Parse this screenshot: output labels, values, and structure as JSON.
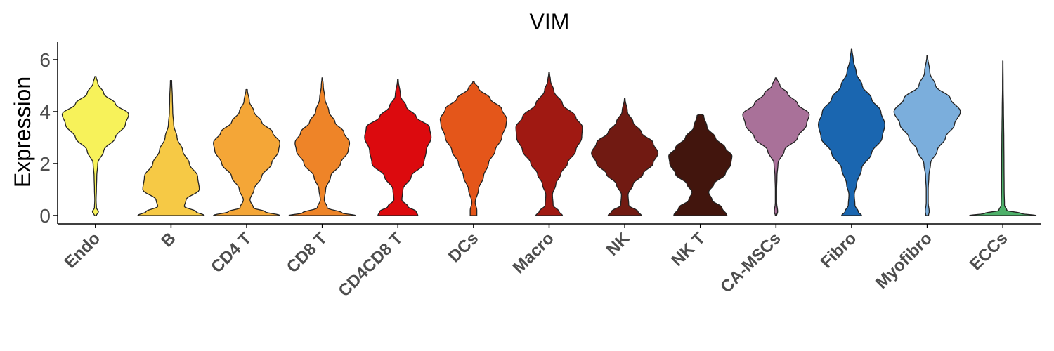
{
  "chart_data": {
    "type": "violin",
    "title": "VIM",
    "xlabel": "",
    "ylabel": "Expression",
    "ylim": [
      -0.3,
      6.7
    ],
    "yticks": [
      "0",
      "2",
      "4",
      "6"
    ],
    "grid": false,
    "legend": "none",
    "categories": [
      "Endo",
      "B",
      "CD4 T",
      "CD8 T",
      "CD4CD8 T",
      "DCs",
      "Macro",
      "NK",
      "NK T",
      "CA-MSCs",
      "Fibro",
      "Myofibro",
      "ECCs"
    ],
    "colors": [
      "#F7F25A",
      "#F6C945",
      "#F4A637",
      "#EE8428",
      "#DC0A0E",
      "#E4561A",
      "#A01912",
      "#711A12",
      "#42150D",
      "#A97199",
      "#1A66B0",
      "#7BAEDC",
      "#4EB16A"
    ],
    "series": [
      {
        "category": "Endo",
        "max": 5.35,
        "profile": [
          [
            0,
            0.03
          ],
          [
            0.15,
            0.09
          ],
          [
            0.3,
            0.03
          ],
          [
            0.6,
            0.02
          ],
          [
            1.0,
            0.03
          ],
          [
            1.5,
            0.04
          ],
          [
            2.0,
            0.07
          ],
          [
            2.5,
            0.25
          ],
          [
            3.0,
            0.6
          ],
          [
            3.5,
            0.9
          ],
          [
            3.9,
            1.0
          ],
          [
            4.3,
            0.6
          ],
          [
            4.7,
            0.25
          ],
          [
            5.1,
            0.07
          ],
          [
            5.35,
            0.02
          ]
        ]
      },
      {
        "category": "B",
        "max": 5.2,
        "profile": [
          [
            0,
            1.0
          ],
          [
            0.15,
            0.75
          ],
          [
            0.35,
            0.4
          ],
          [
            0.6,
            0.45
          ],
          [
            1.0,
            0.85
          ],
          [
            1.5,
            0.8
          ],
          [
            2.0,
            0.55
          ],
          [
            2.5,
            0.35
          ],
          [
            3.0,
            0.18
          ],
          [
            3.5,
            0.08
          ],
          [
            4.0,
            0.05
          ],
          [
            4.5,
            0.04
          ],
          [
            5.2,
            0.02
          ]
        ]
      },
      {
        "category": "CD4 T",
        "max": 4.85,
        "profile": [
          [
            0,
            1.0
          ],
          [
            0.15,
            0.55
          ],
          [
            0.3,
            0.2
          ],
          [
            0.6,
            0.1
          ],
          [
            1.0,
            0.22
          ],
          [
            1.5,
            0.45
          ],
          [
            2.0,
            0.75
          ],
          [
            2.5,
            0.96
          ],
          [
            2.8,
            1.0
          ],
          [
            3.2,
            0.78
          ],
          [
            3.6,
            0.45
          ],
          [
            4.0,
            0.22
          ],
          [
            4.4,
            0.08
          ],
          [
            4.85,
            0.02
          ]
        ]
      },
      {
        "category": "CD8 T",
        "max": 5.3,
        "profile": [
          [
            0,
            1.0
          ],
          [
            0.1,
            0.6
          ],
          [
            0.3,
            0.15
          ],
          [
            0.6,
            0.06
          ],
          [
            1.0,
            0.1
          ],
          [
            1.5,
            0.25
          ],
          [
            2.0,
            0.55
          ],
          [
            2.5,
            0.78
          ],
          [
            2.8,
            0.82
          ],
          [
            3.2,
            0.65
          ],
          [
            3.6,
            0.38
          ],
          [
            4.0,
            0.2
          ],
          [
            4.5,
            0.08
          ],
          [
            5.0,
            0.03
          ],
          [
            5.3,
            0.01
          ]
        ]
      },
      {
        "category": "CD4CD8 T",
        "max": 5.25,
        "profile": [
          [
            0,
            0.6
          ],
          [
            0.15,
            0.55
          ],
          [
            0.35,
            0.3
          ],
          [
            0.6,
            0.12
          ],
          [
            1.0,
            0.15
          ],
          [
            1.5,
            0.4
          ],
          [
            2.0,
            0.78
          ],
          [
            2.5,
            0.85
          ],
          [
            3.0,
            1.0
          ],
          [
            3.4,
            0.95
          ],
          [
            3.8,
            0.55
          ],
          [
            4.2,
            0.25
          ],
          [
            4.6,
            0.08
          ],
          [
            5.25,
            0.01
          ]
        ]
      },
      {
        "category": "DCs",
        "max": 5.15,
        "profile": [
          [
            0,
            0.1
          ],
          [
            0.2,
            0.1
          ],
          [
            0.5,
            0.05
          ],
          [
            1.0,
            0.15
          ],
          [
            1.5,
            0.3
          ],
          [
            2.0,
            0.45
          ],
          [
            2.5,
            0.65
          ],
          [
            3.0,
            0.85
          ],
          [
            3.5,
            0.98
          ],
          [
            3.7,
            1.0
          ],
          [
            4.1,
            0.85
          ],
          [
            4.5,
            0.5
          ],
          [
            4.9,
            0.15
          ],
          [
            5.15,
            0.02
          ]
        ]
      },
      {
        "category": "Macro",
        "max": 5.5,
        "profile": [
          [
            0,
            0.4
          ],
          [
            0.15,
            0.3
          ],
          [
            0.4,
            0.12
          ],
          [
            0.8,
            0.1
          ],
          [
            1.2,
            0.2
          ],
          [
            1.6,
            0.35
          ],
          [
            2.0,
            0.55
          ],
          [
            2.5,
            0.8
          ],
          [
            3.0,
            0.98
          ],
          [
            3.4,
            1.0
          ],
          [
            3.8,
            0.8
          ],
          [
            4.3,
            0.4
          ],
          [
            4.8,
            0.14
          ],
          [
            5.2,
            0.04
          ],
          [
            5.5,
            0.01
          ]
        ]
      },
      {
        "category": "NK",
        "max": 4.5,
        "profile": [
          [
            0,
            0.5
          ],
          [
            0.15,
            0.4
          ],
          [
            0.4,
            0.12
          ],
          [
            0.8,
            0.1
          ],
          [
            1.2,
            0.25
          ],
          [
            1.6,
            0.55
          ],
          [
            2.0,
            0.85
          ],
          [
            2.4,
            1.0
          ],
          [
            2.8,
            0.85
          ],
          [
            3.2,
            0.5
          ],
          [
            3.6,
            0.25
          ],
          [
            4.0,
            0.08
          ],
          [
            4.5,
            0.01
          ]
        ]
      },
      {
        "category": "NK T",
        "max": 3.9,
        "profile": [
          [
            0,
            0.8
          ],
          [
            0.3,
            0.65
          ],
          [
            0.6,
            0.35
          ],
          [
            0.9,
            0.25
          ],
          [
            1.2,
            0.4
          ],
          [
            1.6,
            0.75
          ],
          [
            2.0,
            0.92
          ],
          [
            2.3,
            0.95
          ],
          [
            2.6,
            0.75
          ],
          [
            3.0,
            0.45
          ],
          [
            3.4,
            0.2
          ],
          [
            3.85,
            0.1
          ],
          [
            3.9,
            0.02
          ]
        ]
      },
      {
        "category": "CA-MSCs",
        "max": 5.3,
        "profile": [
          [
            0,
            0.02
          ],
          [
            0.15,
            0.05
          ],
          [
            0.5,
            0.02
          ],
          [
            1.0,
            0.02
          ],
          [
            1.5,
            0.03
          ],
          [
            2.0,
            0.06
          ],
          [
            2.5,
            0.25
          ],
          [
            3.0,
            0.65
          ],
          [
            3.5,
            0.92
          ],
          [
            3.9,
            1.0
          ],
          [
            4.3,
            0.65
          ],
          [
            4.7,
            0.35
          ],
          [
            5.0,
            0.12
          ],
          [
            5.3,
            0.02
          ]
        ]
      },
      {
        "category": "Fibro",
        "max": 6.4,
        "profile": [
          [
            0,
            0.3
          ],
          [
            0.15,
            0.2
          ],
          [
            0.4,
            0.1
          ],
          [
            0.8,
            0.08
          ],
          [
            1.2,
            0.15
          ],
          [
            1.8,
            0.3
          ],
          [
            2.4,
            0.6
          ],
          [
            3.0,
            0.92
          ],
          [
            3.5,
            1.0
          ],
          [
            4.0,
            0.88
          ],
          [
            4.5,
            0.6
          ],
          [
            5.0,
            0.32
          ],
          [
            5.5,
            0.14
          ],
          [
            6.0,
            0.05
          ],
          [
            6.4,
            0.01
          ]
        ]
      },
      {
        "category": "Myofibro",
        "max": 6.15,
        "profile": [
          [
            0,
            0.04
          ],
          [
            0.15,
            0.06
          ],
          [
            0.5,
            0.03
          ],
          [
            1.0,
            0.03
          ],
          [
            1.5,
            0.05
          ],
          [
            2.0,
            0.1
          ],
          [
            2.5,
            0.3
          ],
          [
            3.0,
            0.55
          ],
          [
            3.5,
            0.82
          ],
          [
            4.0,
            1.0
          ],
          [
            4.5,
            0.7
          ],
          [
            5.0,
            0.25
          ],
          [
            5.5,
            0.08
          ],
          [
            6.15,
            0.01
          ]
        ]
      },
      {
        "category": "ECCs",
        "max": 5.95,
        "profile": [
          [
            0,
            1.0
          ],
          [
            0.08,
            0.55
          ],
          [
            0.2,
            0.12
          ],
          [
            0.4,
            0.05
          ],
          [
            1.0,
            0.04
          ],
          [
            2.0,
            0.035
          ],
          [
            3.0,
            0.03
          ],
          [
            3.5,
            0.025
          ],
          [
            4.0,
            0.02
          ],
          [
            5.0,
            0.01
          ],
          [
            5.95,
            0.005
          ]
        ]
      }
    ]
  }
}
